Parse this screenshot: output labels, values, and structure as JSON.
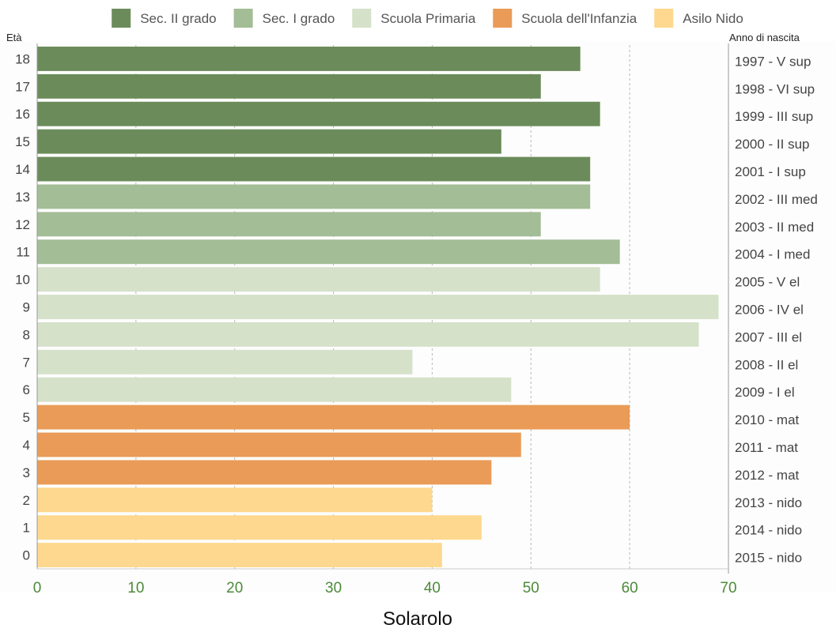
{
  "chart_data": {
    "type": "bar",
    "orientation": "horizontal",
    "caption": "Solarolo",
    "y_axis_label_left": "Età",
    "y_axis_label_right": "Anno di nascita",
    "xlim": [
      0,
      70
    ],
    "x_ticks": [
      "0",
      "10",
      "20",
      "30",
      "40",
      "50",
      "60",
      "70"
    ],
    "grid": "vertical dashed",
    "legend_position": "top",
    "legend": [
      {
        "name": "Sec. II grado",
        "color": "#6b8c5a"
      },
      {
        "name": "Sec. I grado",
        "color": "#a3bd96"
      },
      {
        "name": "Scuola Primaria",
        "color": "#d5e1c9"
      },
      {
        "name": "Scuola dell'Infanzia",
        "color": "#e99b57"
      },
      {
        "name": "Asilo Nido",
        "color": "#fdd88e"
      }
    ],
    "bars": [
      {
        "age": "18",
        "year": "1997 - V sup",
        "value": 55,
        "group": 0
      },
      {
        "age": "17",
        "year": "1998 - VI sup",
        "value": 51,
        "group": 0
      },
      {
        "age": "16",
        "year": "1999 - III sup",
        "value": 57,
        "group": 0
      },
      {
        "age": "15",
        "year": "2000 - II sup",
        "value": 47,
        "group": 0
      },
      {
        "age": "14",
        "year": "2001 - I sup",
        "value": 56,
        "group": 0
      },
      {
        "age": "13",
        "year": "2002 - III med",
        "value": 56,
        "group": 1
      },
      {
        "age": "12",
        "year": "2003 - II med",
        "value": 51,
        "group": 1
      },
      {
        "age": "11",
        "year": "2004 - I med",
        "value": 59,
        "group": 1
      },
      {
        "age": "10",
        "year": "2005 - V el",
        "value": 57,
        "group": 2
      },
      {
        "age": "9",
        "year": "2006 - IV el",
        "value": 69,
        "group": 2
      },
      {
        "age": "8",
        "year": "2007 - III el",
        "value": 67,
        "group": 2
      },
      {
        "age": "7",
        "year": "2008 - II el",
        "value": 38,
        "group": 2
      },
      {
        "age": "6",
        "year": "2009 - I el",
        "value": 48,
        "group": 2
      },
      {
        "age": "5",
        "year": "2010 - mat",
        "value": 60,
        "group": 3
      },
      {
        "age": "4",
        "year": "2011 - mat",
        "value": 49,
        "group": 3
      },
      {
        "age": "3",
        "year": "2012 - mat",
        "value": 46,
        "group": 3
      },
      {
        "age": "2",
        "year": "2013 - nido",
        "value": 40,
        "group": 4
      },
      {
        "age": "1",
        "year": "2014 - nido",
        "value": 45,
        "group": 4
      },
      {
        "age": "0",
        "year": "2015 - nido",
        "value": 41,
        "group": 4
      }
    ]
  }
}
